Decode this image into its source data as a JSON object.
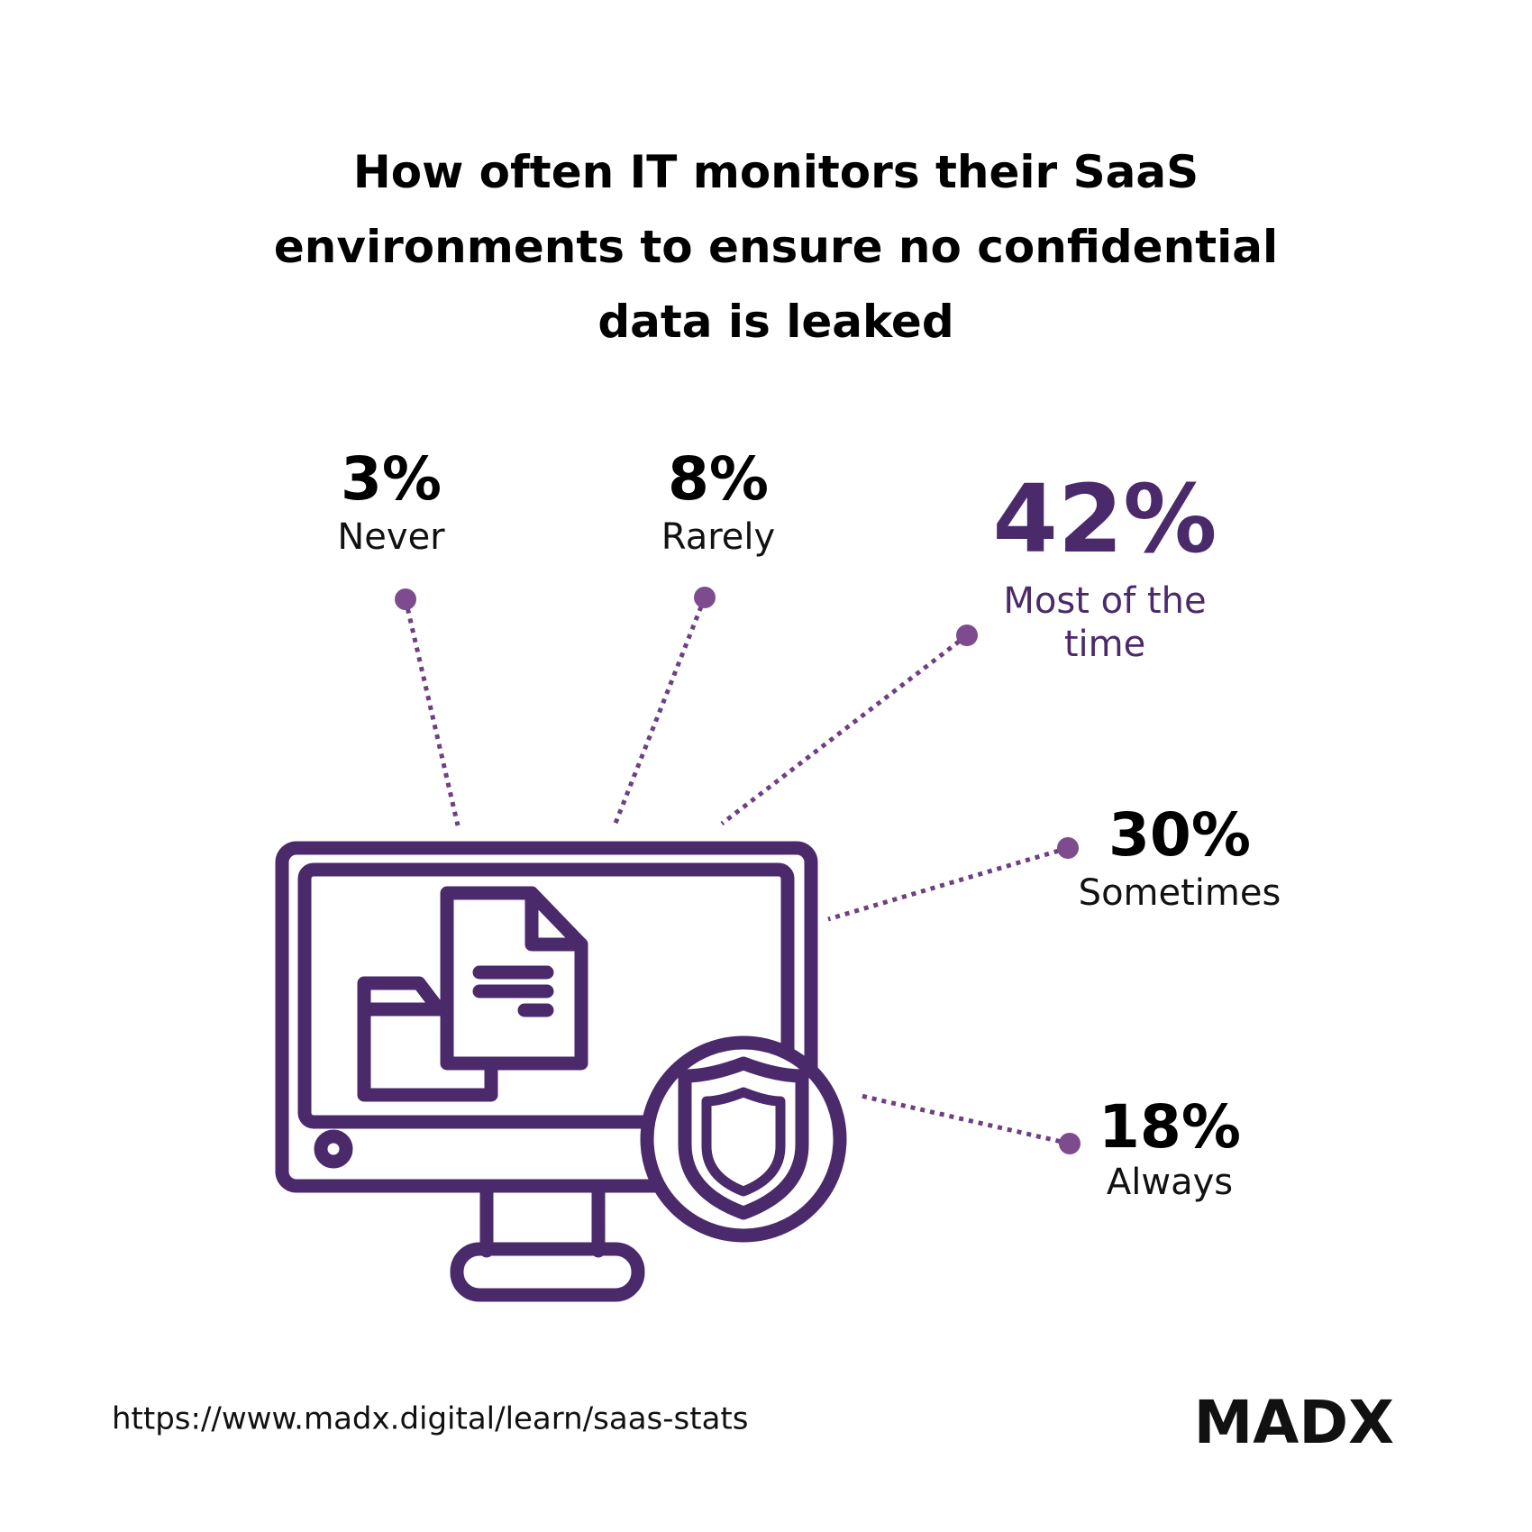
{
  "title": [
    "How often IT monitors their SaaS",
    "environments to ensure no confidential",
    "data is leaked"
  ],
  "stats": [
    {
      "value": "3%",
      "label": [
        "Never"
      ]
    },
    {
      "value": "8%",
      "label": [
        "Rarely"
      ]
    },
    {
      "value": "42%",
      "label": [
        "Most of the",
        "time"
      ]
    },
    {
      "value": "30%",
      "label": [
        "Sometimes"
      ]
    },
    {
      "value": "18%",
      "label": [
        "Always"
      ]
    }
  ],
  "source": "https://www.madx.digital/learn/saas-stats",
  "logo": "MADX"
}
